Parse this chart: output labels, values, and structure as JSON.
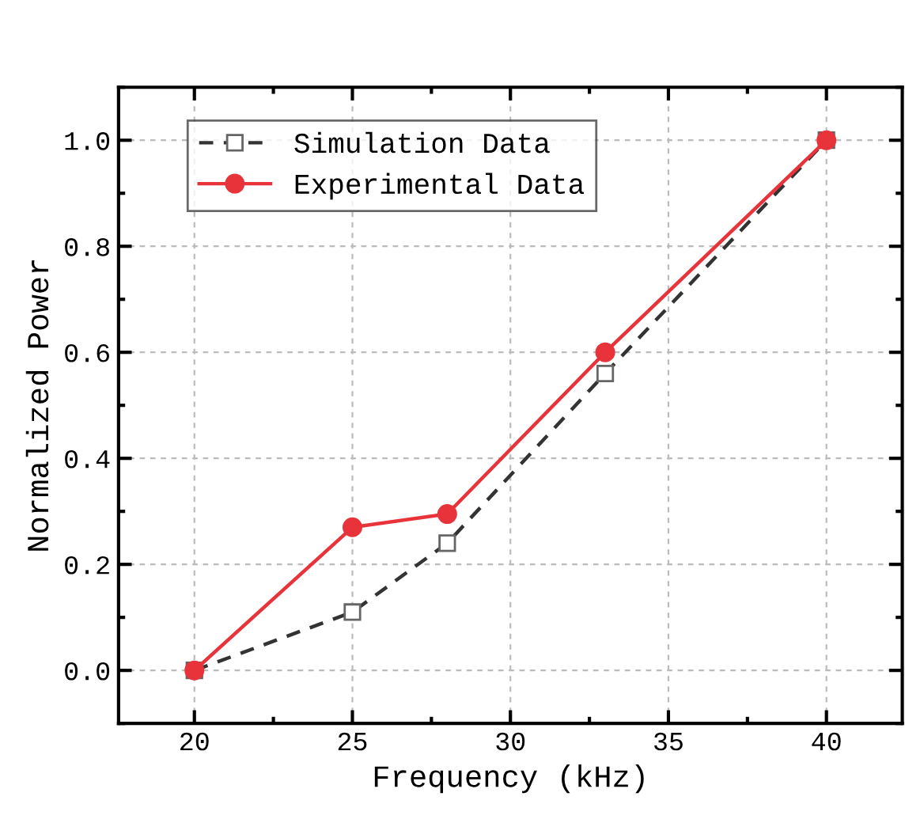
{
  "chart_data": {
    "type": "line",
    "xlabel": "Frequency (kHz)",
    "ylabel": "Normalized Power",
    "x": [
      20,
      25,
      28,
      33,
      40
    ],
    "series": [
      {
        "name": "Simulation Data",
        "color": "#333333",
        "values": [
          0,
          0.11,
          0.24,
          0.56,
          1.0
        ],
        "marker": "square",
        "line_style": "dashed"
      },
      {
        "name": "Experimental Data",
        "color": "#e8333a",
        "values": [
          0,
          0.27,
          0.295,
          0.6,
          1.0
        ],
        "marker": "circle",
        "line_style": "solid"
      }
    ],
    "xlim": [
      17.6,
      42.4
    ],
    "xticks": [
      20,
      25,
      30,
      35,
      40
    ],
    "ylim": [
      -0.1,
      1.1
    ],
    "yticks": [
      {
        "value": 0,
        "label": "0.0"
      },
      0.2,
      0.4,
      0.6,
      0.8,
      {
        "value": 1,
        "label": "1.0"
      }
    ],
    "grid": true,
    "legend": "top left"
  }
}
